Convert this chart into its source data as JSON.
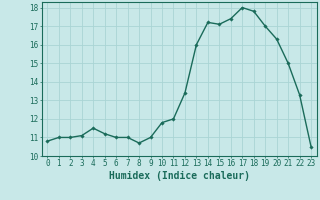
{
  "x": [
    0,
    1,
    2,
    3,
    4,
    5,
    6,
    7,
    8,
    9,
    10,
    11,
    12,
    13,
    14,
    15,
    16,
    17,
    18,
    19,
    20,
    21,
    22,
    23
  ],
  "y": [
    10.8,
    11.0,
    11.0,
    11.1,
    11.5,
    11.2,
    11.0,
    11.0,
    10.7,
    11.0,
    11.8,
    12.0,
    13.4,
    16.0,
    17.2,
    17.1,
    17.4,
    18.0,
    17.8,
    17.0,
    16.3,
    15.0,
    13.3,
    10.5
  ],
  "line_color": "#1a6b5a",
  "marker": "D",
  "marker_size": 1.8,
  "background_color": "#c8e8e8",
  "grid_color": "#aad4d4",
  "xlabel": "Humidex (Indice chaleur)",
  "ylim": [
    10,
    18.3
  ],
  "xlim": [
    -0.5,
    23.5
  ],
  "yticks": [
    10,
    11,
    12,
    13,
    14,
    15,
    16,
    17,
    18
  ],
  "xticks": [
    0,
    1,
    2,
    3,
    4,
    5,
    6,
    7,
    8,
    9,
    10,
    11,
    12,
    13,
    14,
    15,
    16,
    17,
    18,
    19,
    20,
    21,
    22,
    23
  ],
  "tick_fontsize": 5.5,
  "xlabel_fontsize": 7.0,
  "line_width": 1.0,
  "spine_color": "#1a6b5a"
}
